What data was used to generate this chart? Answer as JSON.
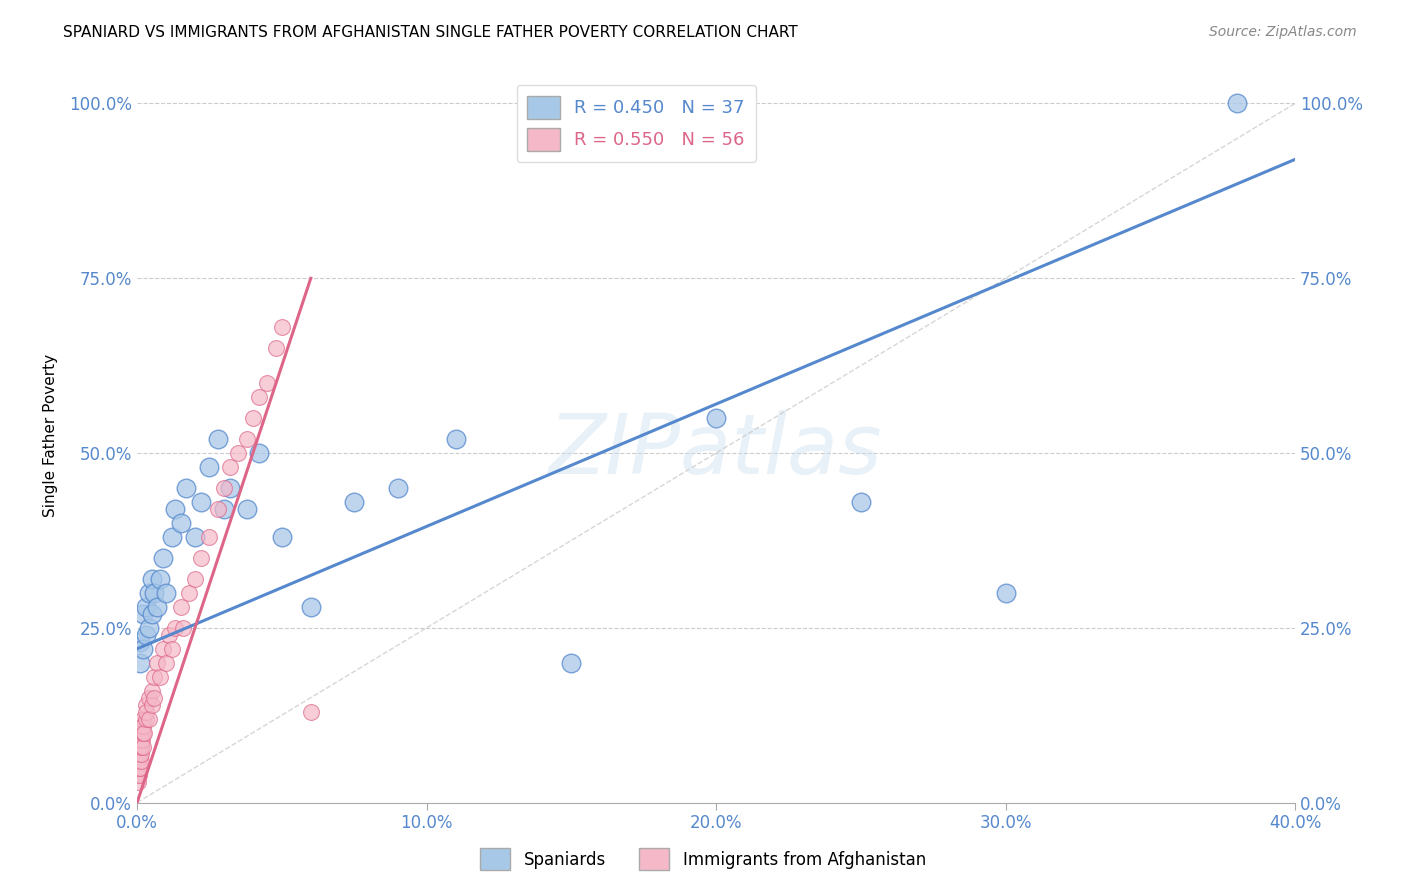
{
  "title": "SPANIARD VS IMMIGRANTS FROM AFGHANISTAN SINGLE FATHER POVERTY CORRELATION CHART",
  "source": "Source: ZipAtlas.com",
  "xlabel_ticks": [
    "0.0%",
    "10.0%",
    "20.0%",
    "30.0%",
    "40.0%"
  ],
  "xlabel_vals": [
    0.0,
    0.1,
    0.2,
    0.3,
    0.4
  ],
  "ylabel_ticks": [
    "0.0%",
    "25.0%",
    "50.0%",
    "75.0%",
    "100.0%"
  ],
  "ylabel_vals": [
    0.0,
    0.25,
    0.5,
    0.75,
    1.0
  ],
  "ylabel_label": "Single Father Poverty",
  "legend_label1": "Spaniards",
  "legend_label2": "Immigrants from Afghanistan",
  "R1": 0.45,
  "N1": 37,
  "R2": 0.55,
  "N2": 56,
  "color_blue": "#a8c8e8",
  "color_pink": "#f4b8c8",
  "color_blue_line": "#5588cc",
  "color_pink_line": "#dd6688",
  "watermark": "ZIPatlas",
  "spaniards_x": [
    0.001,
    0.001,
    0.002,
    0.002,
    0.003,
    0.003,
    0.004,
    0.004,
    0.005,
    0.005,
    0.006,
    0.007,
    0.008,
    0.009,
    0.01,
    0.012,
    0.013,
    0.015,
    0.017,
    0.02,
    0.022,
    0.025,
    0.028,
    0.03,
    0.032,
    0.038,
    0.042,
    0.05,
    0.06,
    0.075,
    0.09,
    0.11,
    0.15,
    0.2,
    0.25,
    0.3,
    0.38
  ],
  "spaniards_y": [
    0.2,
    0.23,
    0.22,
    0.27,
    0.24,
    0.28,
    0.25,
    0.3,
    0.27,
    0.32,
    0.3,
    0.28,
    0.32,
    0.35,
    0.3,
    0.38,
    0.42,
    0.4,
    0.45,
    0.38,
    0.43,
    0.48,
    0.52,
    0.42,
    0.45,
    0.42,
    0.5,
    0.38,
    0.28,
    0.43,
    0.45,
    0.52,
    0.2,
    0.55,
    0.43,
    0.3,
    1.0
  ],
  "afghanistan_x": [
    0.0002,
    0.0003,
    0.0004,
    0.0005,
    0.0006,
    0.0007,
    0.0008,
    0.0009,
    0.001,
    0.001,
    0.001,
    0.0012,
    0.0013,
    0.0014,
    0.0015,
    0.0016,
    0.0017,
    0.0018,
    0.002,
    0.002,
    0.002,
    0.0022,
    0.0025,
    0.003,
    0.003,
    0.003,
    0.004,
    0.004,
    0.005,
    0.005,
    0.006,
    0.006,
    0.007,
    0.008,
    0.009,
    0.01,
    0.011,
    0.012,
    0.013,
    0.015,
    0.016,
    0.018,
    0.02,
    0.022,
    0.025,
    0.028,
    0.03,
    0.032,
    0.035,
    0.038,
    0.04,
    0.042,
    0.045,
    0.048,
    0.05,
    0.06
  ],
  "afghanistan_y": [
    0.04,
    0.03,
    0.05,
    0.04,
    0.06,
    0.05,
    0.07,
    0.06,
    0.05,
    0.07,
    0.08,
    0.06,
    0.07,
    0.09,
    0.08,
    0.1,
    0.09,
    0.11,
    0.08,
    0.1,
    0.12,
    0.11,
    0.1,
    0.12,
    0.14,
    0.13,
    0.15,
    0.12,
    0.16,
    0.14,
    0.18,
    0.15,
    0.2,
    0.18,
    0.22,
    0.2,
    0.24,
    0.22,
    0.25,
    0.28,
    0.25,
    0.3,
    0.32,
    0.35,
    0.38,
    0.42,
    0.45,
    0.48,
    0.5,
    0.52,
    0.55,
    0.58,
    0.6,
    0.65,
    0.68,
    0.13
  ],
  "xlim": [
    0.0,
    0.4
  ],
  "ylim": [
    0.0,
    1.05
  ],
  "blue_line_x": [
    0.0,
    0.4
  ],
  "blue_line_y": [
    0.22,
    0.92
  ],
  "pink_line_x": [
    0.0,
    0.06
  ],
  "pink_line_y": [
    0.0,
    0.75
  ]
}
